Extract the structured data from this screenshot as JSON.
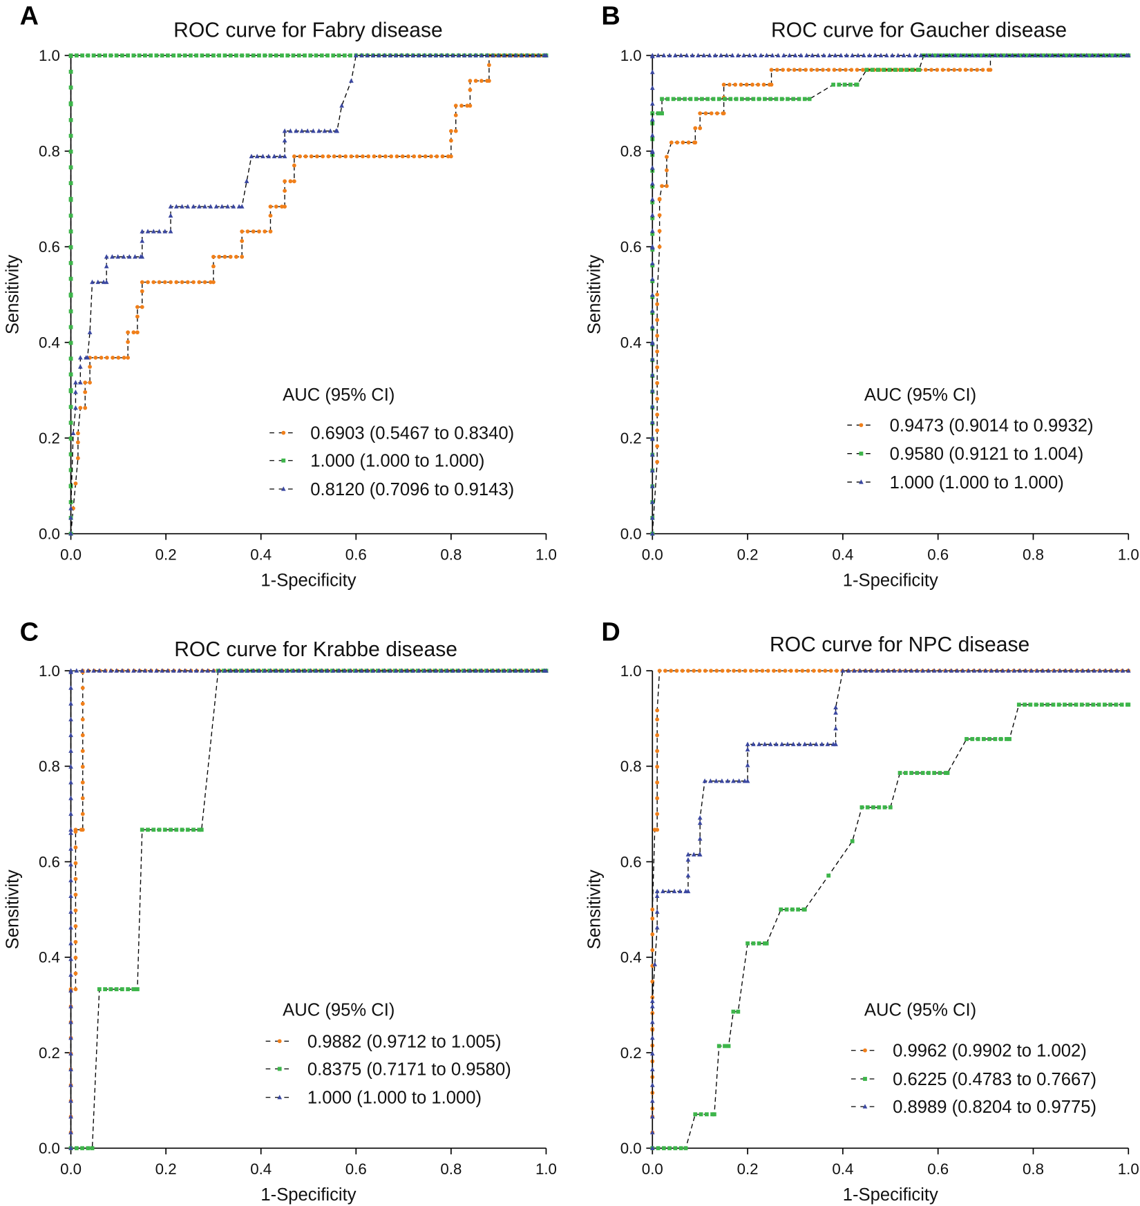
{
  "colors": {
    "orange": "#f07f1a",
    "green": "#3db54a",
    "blue": "#3a47a0",
    "connector": "#000000"
  },
  "chart_data": [
    {
      "panel": "A",
      "type": "line",
      "title": "ROC curve for Fabry disease",
      "xlabel": "1-Specificity",
      "ylabel": "Sensitivity",
      "xlim": [
        0,
        1
      ],
      "ylim": [
        0,
        1
      ],
      "xticks": [
        "0.0",
        "0.2",
        "0.4",
        "0.6",
        "0.8",
        "1.0"
      ],
      "yticks": [
        "0.0",
        "0.2",
        "0.4",
        "0.6",
        "0.8",
        "1.0"
      ],
      "grid": false,
      "legend_title": "AUC (95% CI)",
      "legend_placement": "bottom-right",
      "series": [
        {
          "name": "0.6903 (0.5467 to 0.8340)",
          "color": "orange",
          "marker": "circle",
          "points": [
            [
              0,
              0
            ],
            [
              0.005,
              0.053
            ],
            [
              0.01,
              0.105
            ],
            [
              0.015,
              0.158
            ],
            [
              0.015,
              0.21
            ],
            [
              0.02,
              0.263
            ],
            [
              0.03,
              0.263
            ],
            [
              0.03,
              0.316
            ],
            [
              0.04,
              0.316
            ],
            [
              0.04,
              0.368
            ],
            [
              0.12,
              0.368
            ],
            [
              0.12,
              0.421
            ],
            [
              0.14,
              0.421
            ],
            [
              0.14,
              0.474
            ],
            [
              0.15,
              0.474
            ],
            [
              0.15,
              0.526
            ],
            [
              0.3,
              0.526
            ],
            [
              0.3,
              0.579
            ],
            [
              0.36,
              0.579
            ],
            [
              0.36,
              0.632
            ],
            [
              0.42,
              0.632
            ],
            [
              0.42,
              0.684
            ],
            [
              0.45,
              0.684
            ],
            [
              0.45,
              0.737
            ],
            [
              0.47,
              0.737
            ],
            [
              0.47,
              0.789
            ],
            [
              0.8,
              0.789
            ],
            [
              0.8,
              0.842
            ],
            [
              0.81,
              0.842
            ],
            [
              0.81,
              0.895
            ],
            [
              0.84,
              0.895
            ],
            [
              0.84,
              0.947
            ],
            [
              0.88,
              0.947
            ],
            [
              0.88,
              1
            ],
            [
              1,
              1
            ]
          ]
        },
        {
          "name": "1.000 (1.000 to 1.000)",
          "color": "green",
          "marker": "square",
          "points": [
            [
              0,
              0
            ],
            [
              0,
              0.1
            ],
            [
              0,
              0.3
            ],
            [
              0,
              0.5
            ],
            [
              0,
              0.7
            ],
            [
              0,
              0.9
            ],
            [
              0,
              1
            ],
            [
              1,
              1
            ]
          ]
        },
        {
          "name": "0.8120 (0.7096 to 0.9143)",
          "color": "blue",
          "marker": "triangle",
          "points": [
            [
              0,
              0
            ],
            [
              0,
              0.053
            ],
            [
              0.005,
              0.21
            ],
            [
              0.01,
              0.263
            ],
            [
              0.01,
              0.316
            ],
            [
              0.02,
              0.316
            ],
            [
              0.02,
              0.368
            ],
            [
              0.035,
              0.368
            ],
            [
              0.04,
              0.421
            ],
            [
              0.045,
              0.526
            ],
            [
              0.075,
              0.526
            ],
            [
              0.075,
              0.579
            ],
            [
              0.15,
              0.579
            ],
            [
              0.15,
              0.632
            ],
            [
              0.21,
              0.632
            ],
            [
              0.21,
              0.684
            ],
            [
              0.36,
              0.684
            ],
            [
              0.37,
              0.737
            ],
            [
              0.38,
              0.789
            ],
            [
              0.45,
              0.789
            ],
            [
              0.45,
              0.842
            ],
            [
              0.56,
              0.842
            ],
            [
              0.57,
              0.895
            ],
            [
              0.59,
              0.947
            ],
            [
              0.6,
              1
            ],
            [
              1,
              1
            ]
          ]
        }
      ]
    },
    {
      "panel": "B",
      "type": "line",
      "title": "ROC curve for Gaucher disease",
      "xlabel": "1-Specificity",
      "ylabel": "Sensitivity",
      "xlim": [
        0,
        1
      ],
      "ylim": [
        0,
        1
      ],
      "xticks": [
        "0.0",
        "0.2",
        "0.4",
        "0.6",
        "0.8",
        "1.0"
      ],
      "yticks": [
        "0.0",
        "0.2",
        "0.4",
        "0.6",
        "0.8",
        "1.0"
      ],
      "grid": false,
      "legend_title": "AUC (95% CI)",
      "legend_placement": "bottom-right",
      "series": [
        {
          "name": "0.9473 (0.9014 to 0.9932)",
          "color": "orange",
          "marker": "circle",
          "points": [
            [
              0,
              0
            ],
            [
              0.01,
              0.15
            ],
            [
              0.01,
              0.5
            ],
            [
              0.015,
              0.6
            ],
            [
              0.015,
              0.7
            ],
            [
              0.02,
              0.727
            ],
            [
              0.03,
              0.727
            ],
            [
              0.03,
              0.788
            ],
            [
              0.04,
              0.818
            ],
            [
              0.09,
              0.818
            ],
            [
              0.09,
              0.848
            ],
            [
              0.1,
              0.848
            ],
            [
              0.1,
              0.879
            ],
            [
              0.15,
              0.879
            ],
            [
              0.15,
              0.939
            ],
            [
              0.25,
              0.939
            ],
            [
              0.25,
              0.97
            ],
            [
              0.71,
              0.97
            ],
            [
              0.71,
              1
            ],
            [
              1,
              1
            ]
          ]
        },
        {
          "name": "0.9580 (0.9121 to 1.004)",
          "color": "green",
          "marker": "square",
          "points": [
            [
              0,
              0
            ],
            [
              0,
              0.879
            ],
            [
              0.02,
              0.879
            ],
            [
              0.02,
              0.909
            ],
            [
              0.33,
              0.909
            ],
            [
              0.38,
              0.939
            ],
            [
              0.43,
              0.939
            ],
            [
              0.45,
              0.97
            ],
            [
              0.56,
              0.97
            ],
            [
              0.57,
              1
            ],
            [
              1,
              1
            ]
          ]
        },
        {
          "name": "1.000 (1.000 to 1.000)",
          "color": "blue",
          "marker": "triangle",
          "points": [
            [
              0,
              0
            ],
            [
              0,
              0.2
            ],
            [
              0,
              0.4
            ],
            [
              0,
              0.6
            ],
            [
              0,
              0.8
            ],
            [
              0,
              1
            ],
            [
              1,
              1
            ]
          ]
        }
      ]
    },
    {
      "panel": "C",
      "type": "line",
      "title": "ROC curve for Krabbe disease",
      "xlabel": "1-Specificity",
      "ylabel": "Sensitivity",
      "xlim": [
        0,
        1
      ],
      "ylim": [
        0,
        1
      ],
      "xticks": [
        "0.0",
        "0.2",
        "0.4",
        "0.6",
        "0.8",
        "1.0"
      ],
      "yticks": [
        "0.0",
        "0.2",
        "0.4",
        "0.6",
        "0.8",
        "1.0"
      ],
      "grid": false,
      "legend_title": "AUC (95% CI)",
      "legend_placement": "bottom-right",
      "series": [
        {
          "name": "0.9882 (0.9712 to 1.005)",
          "color": "orange",
          "marker": "circle",
          "points": [
            [
              0,
              0
            ],
            [
              0,
              0.333
            ],
            [
              0.01,
              0.333
            ],
            [
              0.01,
              0.667
            ],
            [
              0.025,
              0.667
            ],
            [
              0.025,
              1
            ],
            [
              1,
              1
            ]
          ]
        },
        {
          "name": "0.8375 (0.7171 to 0.9580)",
          "color": "green",
          "marker": "square",
          "points": [
            [
              0,
              0
            ],
            [
              0.045,
              0
            ],
            [
              0.06,
              0.333
            ],
            [
              0.14,
              0.333
            ],
            [
              0.15,
              0.667
            ],
            [
              0.275,
              0.667
            ],
            [
              0.31,
              1
            ],
            [
              1,
              1
            ]
          ]
        },
        {
          "name": "1.000 (1.000 to 1.000)",
          "color": "blue",
          "marker": "triangle",
          "points": [
            [
              0,
              0
            ],
            [
              0,
              0.667
            ],
            [
              0,
              1
            ],
            [
              1,
              1
            ]
          ]
        }
      ]
    },
    {
      "panel": "D",
      "type": "line",
      "title": "ROC curve for NPC disease",
      "xlabel": "1-Specificity",
      "ylabel": "Sensitivity",
      "xlim": [
        0,
        1
      ],
      "ylim": [
        0,
        1
      ],
      "xticks": [
        "0.0",
        "0.2",
        "0.4",
        "0.6",
        "0.8",
        "1.0"
      ],
      "yticks": [
        "0.0",
        "0.2",
        "0.4",
        "0.6",
        "0.8",
        "1.0"
      ],
      "grid": false,
      "legend_title": "AUC (95% CI)",
      "legend_placement": "bottom-right",
      "series": [
        {
          "name": "0.9962 (0.9902 to 1.002)",
          "color": "orange",
          "marker": "circle",
          "points": [
            [
              0,
              0
            ],
            [
              0,
              0.083
            ],
            [
              0,
              0.25
            ],
            [
              0,
              0.5
            ],
            [
              0.005,
              0.667
            ],
            [
              0.01,
              0.667
            ],
            [
              0.01,
              0.917
            ],
            [
              0.015,
              1
            ],
            [
              1,
              1
            ]
          ]
        },
        {
          "name": "0.6225 (0.4783 to 0.7667)",
          "color": "green",
          "marker": "square",
          "points": [
            [
              0,
              0
            ],
            [
              0.07,
              0
            ],
            [
              0.09,
              0.071
            ],
            [
              0.13,
              0.071
            ],
            [
              0.14,
              0.214
            ],
            [
              0.16,
              0.214
            ],
            [
              0.17,
              0.286
            ],
            [
              0.18,
              0.286
            ],
            [
              0.2,
              0.429
            ],
            [
              0.24,
              0.429
            ],
            [
              0.27,
              0.5
            ],
            [
              0.32,
              0.5
            ],
            [
              0.37,
              0.571
            ],
            [
              0.42,
              0.643
            ],
            [
              0.44,
              0.714
            ],
            [
              0.5,
              0.714
            ],
            [
              0.52,
              0.786
            ],
            [
              0.62,
              0.786
            ],
            [
              0.66,
              0.857
            ],
            [
              0.75,
              0.857
            ],
            [
              0.77,
              0.929
            ],
            [
              1,
              0.929
            ]
          ]
        },
        {
          "name": "0.8989 (0.8204 to 0.9775)",
          "color": "blue",
          "marker": "triangle",
          "points": [
            [
              0,
              0
            ],
            [
              0,
              0.308
            ],
            [
              0.005,
              0.385
            ],
            [
              0.01,
              0.462
            ],
            [
              0.01,
              0.538
            ],
            [
              0.075,
              0.538
            ],
            [
              0.075,
              0.615
            ],
            [
              0.1,
              0.615
            ],
            [
              0.1,
              0.692
            ],
            [
              0.11,
              0.769
            ],
            [
              0.2,
              0.769
            ],
            [
              0.2,
              0.846
            ],
            [
              0.385,
              0.846
            ],
            [
              0.385,
              0.923
            ],
            [
              0.4,
              1
            ],
            [
              1,
              1
            ]
          ]
        }
      ]
    }
  ]
}
